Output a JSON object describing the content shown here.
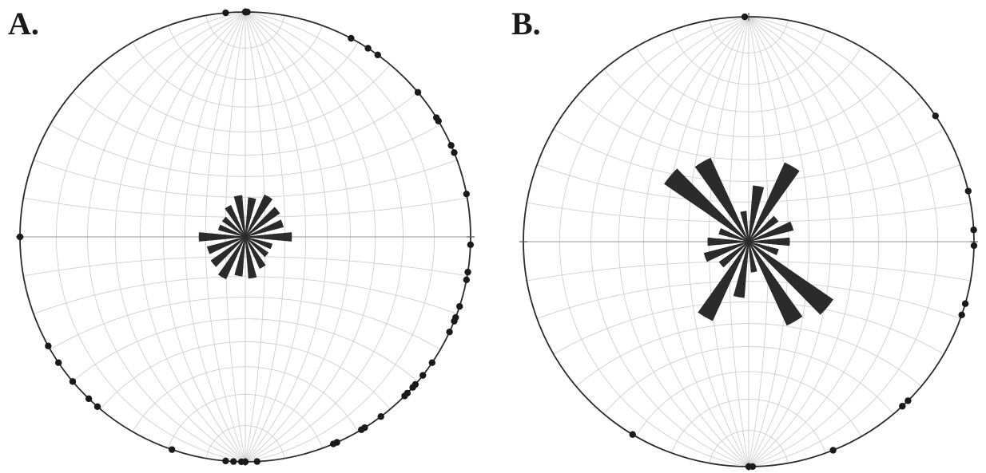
{
  "panels": [
    {
      "label": "A.",
      "pole_azimuths": [
        355,
        0,
        28,
        33,
        36,
        50,
        58,
        59,
        66,
        68,
        79,
        92,
        99,
        101,
        108,
        111,
        112,
        115,
        124,
        128,
        131,
        132,
        134,
        135,
        143,
        148,
        149,
        156,
        157,
        177,
        180,
        181,
        183,
        185,
        199,
        221,
        224,
        230,
        236,
        241,
        270,
        0.5
      ],
      "rose_lengths": [
        0.85,
        1.0,
        0.6,
        0.45,
        0.75,
        0.55,
        0.6,
        0.5,
        0.9,
        0.8,
        0.7,
        0.9,
        0.85,
        1.0,
        0.6,
        0.45,
        0.75,
        0.55
      ]
    },
    {
      "label": "B.",
      "pole_azimuths": [
        359,
        56,
        77,
        87,
        91,
        106,
        109,
        135,
        137,
        158,
        179,
        180,
        211
      ],
      "rose_lengths": [
        0.55,
        0.4,
        0.35,
        0.45,
        0.3,
        0.3,
        1.0,
        0.55,
        0.15,
        0.25,
        0.85,
        0.3,
        0.45,
        0.4,
        0.3,
        0.45,
        0.9,
        0.3
      ]
    }
  ]
}
